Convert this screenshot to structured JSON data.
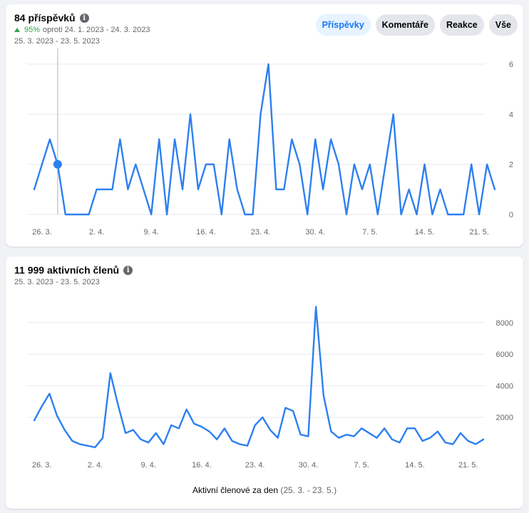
{
  "posts_card": {
    "title": "84 příspěvků",
    "change_pct": "95%",
    "change_text": "oproti 24. 1. 2023 - 24. 3. 2023",
    "date_range": "25. 3. 2023 - 23. 5. 2023",
    "tabs": [
      {
        "label": "Příspěvky",
        "active": true
      },
      {
        "label": "Komentáře",
        "active": false
      },
      {
        "label": "Reakce",
        "active": false
      },
      {
        "label": "Vše",
        "active": false
      }
    ]
  },
  "members_card": {
    "title": "11 999 aktivních členů",
    "date_range": "25. 3. 2023 - 23. 5. 2023",
    "caption_main": "Aktivní členové za den",
    "caption_range": "(25. 3. - 23. 5.)"
  },
  "colors": {
    "line": "#2d7ff0",
    "grid": "#e6e9ee",
    "axis_text": "#65676b",
    "accent_up": "#31a24c"
  },
  "chart_data": [
    {
      "type": "line",
      "x_tick_labels": [
        "26. 3.",
        "2. 4.",
        "9. 4.",
        "16. 4.",
        "23. 4.",
        "30. 4.",
        "7. 5.",
        "14. 5.",
        "21. 5."
      ],
      "y_ticks": [
        0,
        2,
        4,
        6
      ],
      "ylim": [
        0,
        6
      ],
      "grid": true,
      "highlight": {
        "index": 3,
        "value": 2
      },
      "values": [
        1,
        2,
        3,
        2,
        0,
        0,
        0,
        0,
        1,
        1,
        1,
        3,
        1,
        2,
        1,
        0,
        3,
        0,
        3,
        1,
        4,
        1,
        2,
        2,
        0,
        3,
        1,
        0,
        0,
        4,
        6,
        1,
        1,
        3,
        2,
        0,
        3,
        1,
        3,
        2,
        0,
        2,
        1,
        2,
        0,
        2,
        4,
        0,
        1,
        0,
        2,
        0,
        1,
        0,
        0,
        0,
        2,
        0,
        2,
        1
      ]
    },
    {
      "type": "line",
      "x_tick_labels": [
        "26. 3.",
        "2. 4.",
        "9. 4.",
        "16. 4.",
        "23. 4.",
        "30. 4.",
        "7. 5.",
        "14. 5.",
        "21. 5."
      ],
      "y_ticks": [
        2000,
        4000,
        6000,
        8000
      ],
      "ylim": [
        0,
        9300
      ],
      "grid": true,
      "values": [
        1800,
        2700,
        3500,
        2100,
        1200,
        500,
        300,
        200,
        100,
        700,
        4800,
        2800,
        1000,
        1200,
        600,
        400,
        1000,
        300,
        1500,
        1300,
        2500,
        1600,
        1400,
        1100,
        600,
        1300,
        500,
        300,
        200,
        1500,
        2000,
        1200,
        700,
        2600,
        2400,
        900,
        800,
        9000,
        3400,
        1100,
        700,
        900,
        800,
        1300,
        1000,
        700,
        1300,
        600,
        400,
        1300,
        1300,
        500,
        700,
        1100,
        400,
        300,
        1000,
        500,
        300,
        600
      ]
    }
  ]
}
